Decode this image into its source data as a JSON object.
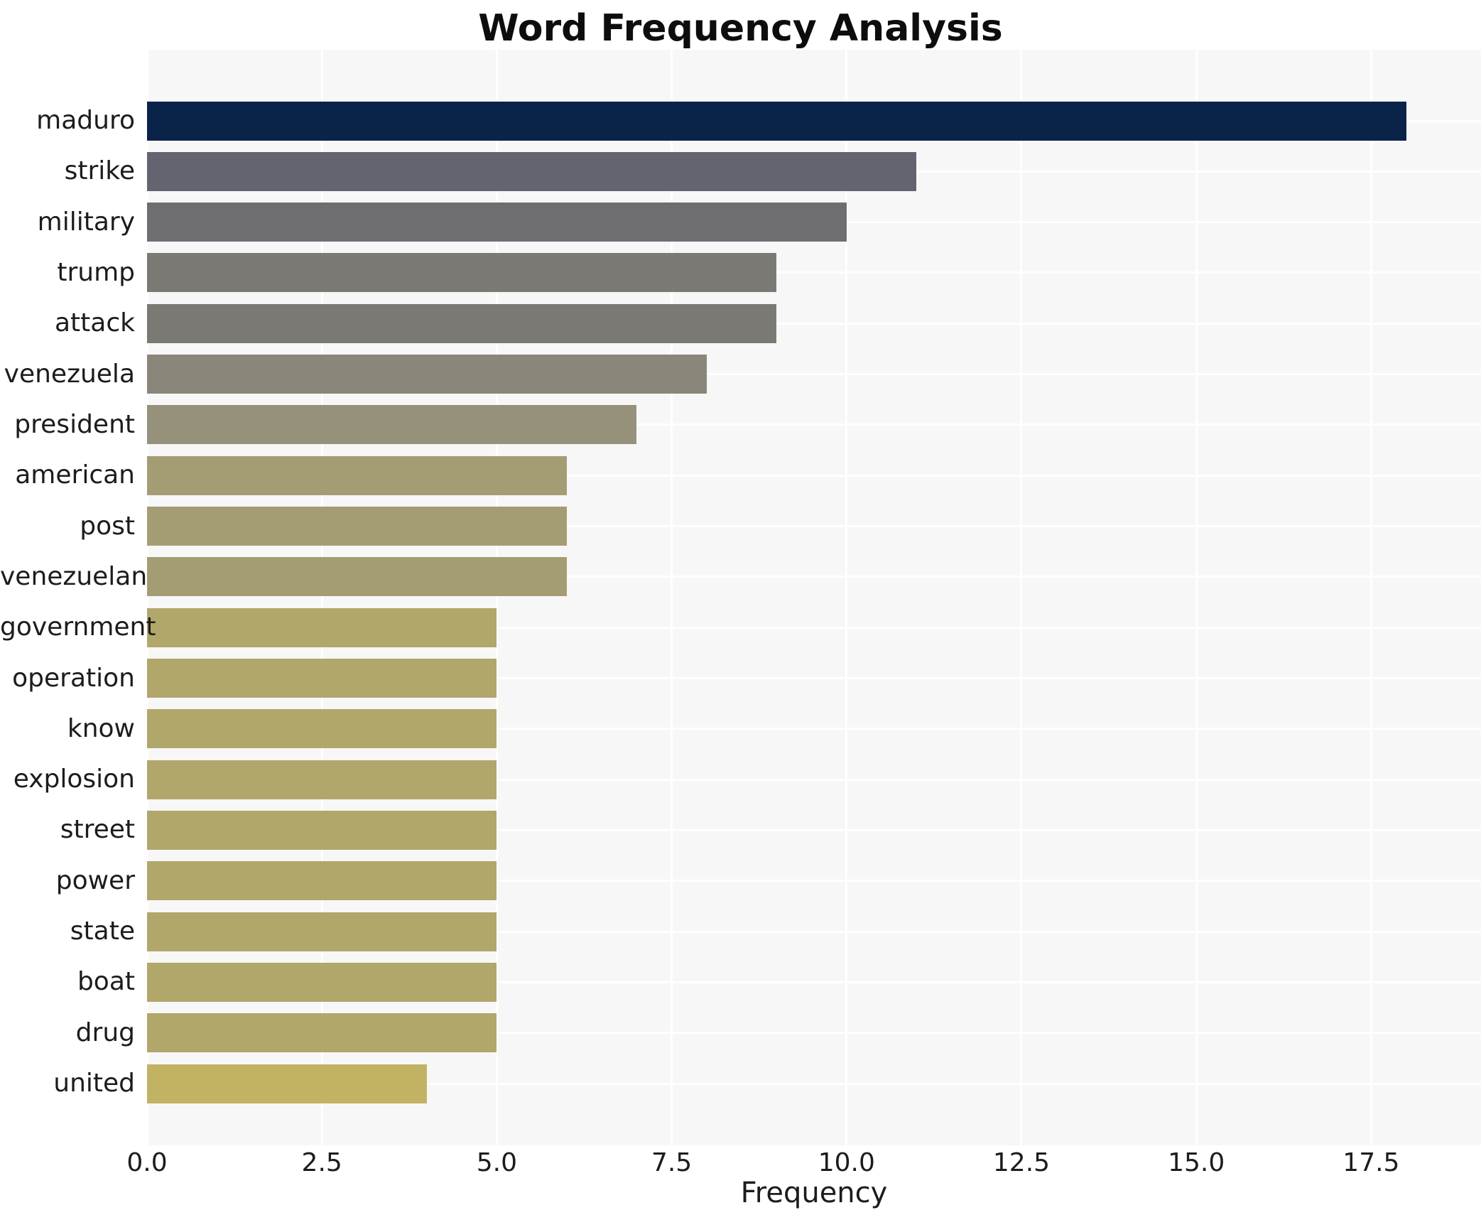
{
  "title": "Word Frequency Analysis",
  "x_axis_label": "Frequency",
  "chart_data": {
    "type": "bar",
    "orientation": "horizontal",
    "title": "Word Frequency Analysis",
    "xlabel": "Frequency",
    "ylabel": "",
    "categories": [
      "maduro",
      "strike",
      "military",
      "trump",
      "attack",
      "venezuela",
      "president",
      "american",
      "post",
      "venezuelan",
      "government",
      "operation",
      "know",
      "explosion",
      "street",
      "power",
      "state",
      "boat",
      "drug",
      "united"
    ],
    "values": [
      18,
      11,
      10,
      9,
      9,
      8,
      7,
      6,
      6,
      6,
      5,
      5,
      5,
      5,
      5,
      5,
      5,
      5,
      5,
      4
    ],
    "bar_colors": [
      "#0a2349",
      "#63646f",
      "#6e6e70",
      "#7b7974",
      "#7b7974",
      "#8a8679",
      "#96917a",
      "#a49d74",
      "#a49d74",
      "#a49d74",
      "#b1a76b",
      "#b1a76b",
      "#b1a76b",
      "#b1a76b",
      "#b1a76b",
      "#b1a76b",
      "#b1a76b",
      "#b1a76b",
      "#b1a76b",
      "#c2b364"
    ],
    "xlim": [
      0,
      19.07
    ],
    "xticks": [
      0,
      2.5,
      5,
      7.5,
      10,
      12.5,
      15,
      17.5
    ],
    "xtick_labels": [
      "0.0",
      "2.5",
      "5.0",
      "7.5",
      "10.0",
      "12.5",
      "15.0",
      "17.5"
    ],
    "grid": true,
    "legend": "none",
    "plot_background": "#f7f7f8",
    "grid_color": "#ffffff",
    "figure_background": "#ffffff"
  }
}
